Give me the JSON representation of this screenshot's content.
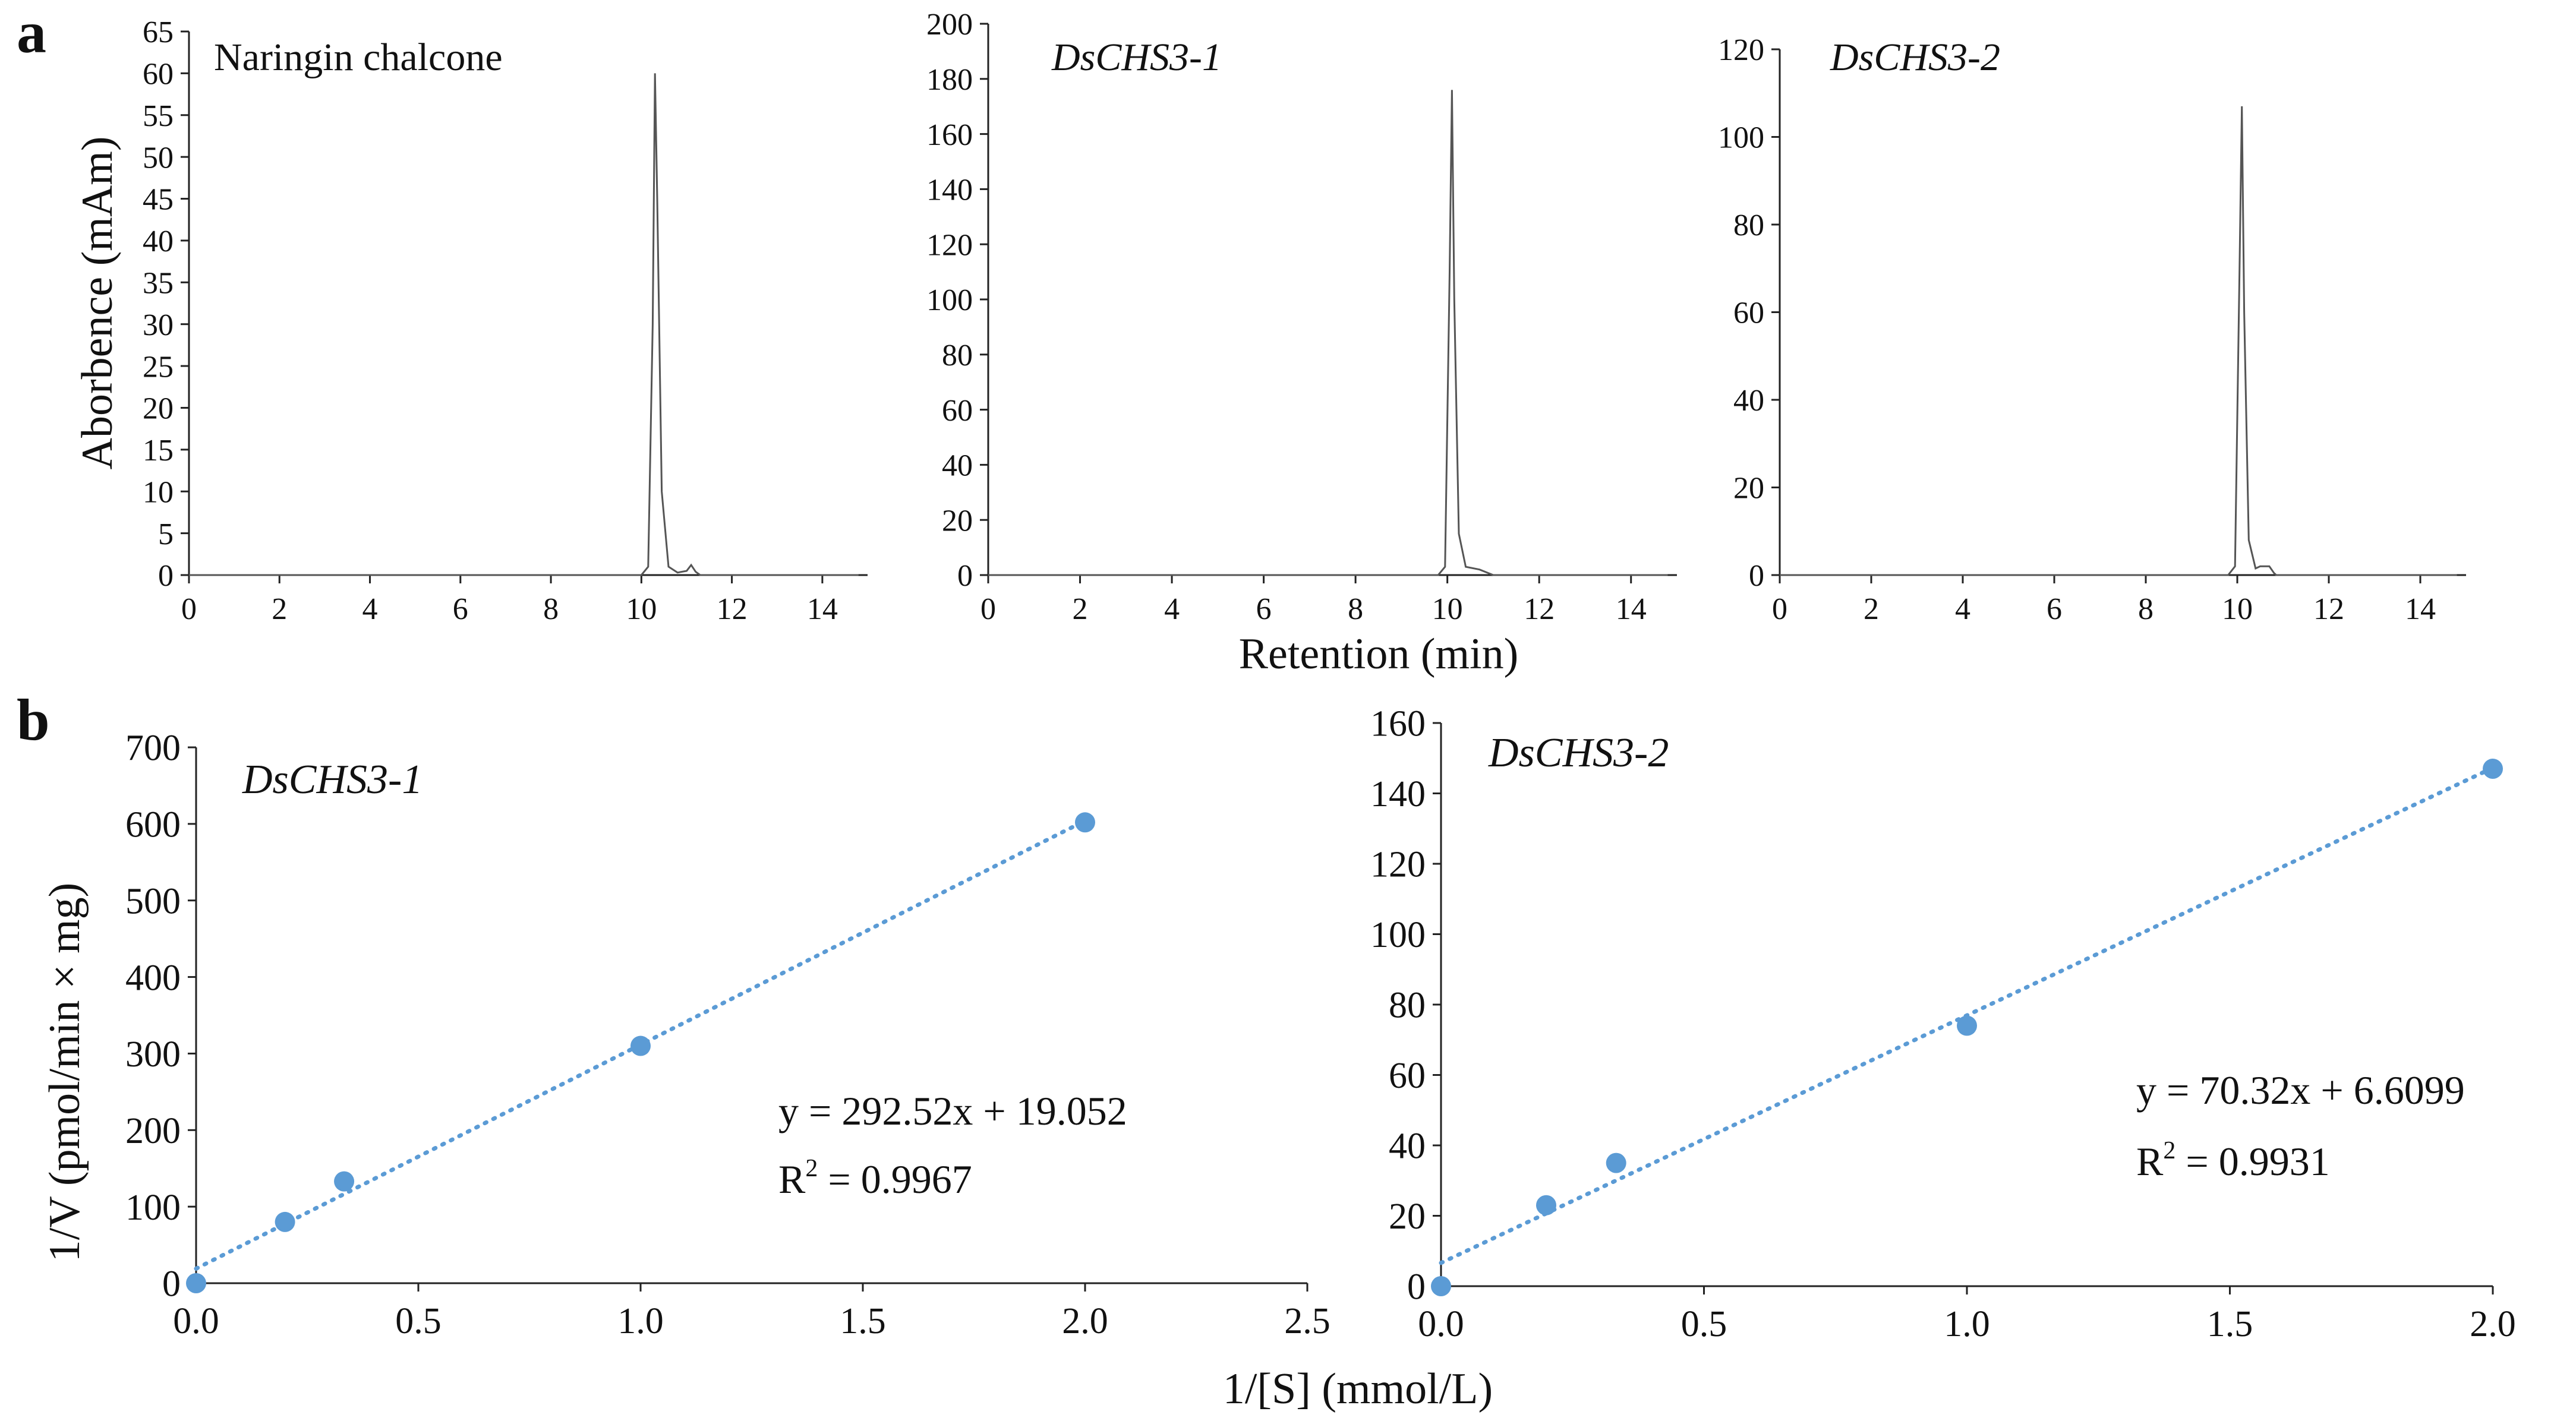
{
  "panel_labels": {
    "a": "a",
    "b": "b"
  },
  "shared_labels": {
    "a_ylabel": "Aborbence (mAm)",
    "a_xlabel": "Retention (min)",
    "b_ylabel": "1/V (pmol/min × mg)",
    "b_xlabel": "1/[S] (mmol/L)"
  },
  "chart_data": [
    {
      "type": "line",
      "panel": "a",
      "title": "Naringin chalcone",
      "title_italic": false,
      "xlabel": "Retention (min)",
      "ylabel": "Aborbence (mAm)",
      "xlim": [
        0,
        15
      ],
      "ylim": [
        0,
        65
      ],
      "xticks": [
        0,
        2,
        4,
        6,
        8,
        10,
        12,
        14
      ],
      "yticks": [
        0,
        5,
        10,
        15,
        20,
        25,
        30,
        35,
        40,
        45,
        50,
        55,
        60,
        65
      ],
      "series": [
        {
          "name": "Naringin chalcone",
          "x": [
            0,
            10.0,
            10.15,
            10.25,
            10.3,
            10.35,
            10.45,
            10.6,
            10.8,
            11.0,
            11.1,
            11.2,
            11.3,
            14.8
          ],
          "y": [
            0,
            0,
            1,
            30,
            60,
            45,
            10,
            1,
            0.3,
            0.5,
            1.2,
            0.4,
            0,
            0
          ]
        }
      ]
    },
    {
      "type": "line",
      "panel": "a",
      "title": "DsCHS3-1",
      "title_italic": true,
      "xlabel": "Retention (min)",
      "ylabel": "",
      "xlim": [
        0,
        15
      ],
      "ylim": [
        0,
        200
      ],
      "xticks": [
        0,
        2,
        4,
        6,
        8,
        10,
        12,
        14
      ],
      "yticks": [
        0,
        20,
        40,
        60,
        80,
        100,
        120,
        140,
        160,
        180,
        200
      ],
      "series": [
        {
          "name": "DsCHS3-1",
          "x": [
            0,
            9.8,
            9.95,
            10.05,
            10.1,
            10.15,
            10.25,
            10.4,
            10.7,
            11.0,
            14.8
          ],
          "y": [
            0,
            0,
            3,
            110,
            176,
            100,
            15,
            3,
            2,
            0,
            0
          ]
        }
      ]
    },
    {
      "type": "line",
      "panel": "a",
      "title": "DsCHS3-2",
      "title_italic": true,
      "xlabel": "Retention (min)",
      "ylabel": "",
      "xlim": [
        0,
        15
      ],
      "ylim": [
        0,
        120
      ],
      "xticks": [
        0,
        2,
        4,
        6,
        8,
        10,
        12,
        14
      ],
      "yticks": [
        0,
        20,
        40,
        60,
        80,
        100,
        120
      ],
      "series": [
        {
          "name": "DsCHS3-2",
          "x": [
            0,
            9.8,
            9.95,
            10.05,
            10.1,
            10.15,
            10.25,
            10.4,
            10.5,
            10.7,
            10.8,
            10.85,
            14.8
          ],
          "y": [
            0,
            0,
            2,
            70,
            107,
            60,
            8,
            1.5,
            2,
            2,
            0.5,
            0,
            0
          ]
        }
      ]
    },
    {
      "type": "scatter",
      "panel": "b",
      "title": "DsCHS3-1",
      "title_italic": true,
      "xlabel": "1/[S] (mmol/L)",
      "ylabel": "1/V (pmol/min × mg)",
      "xlim": [
        0,
        2.5
      ],
      "ylim": [
        0,
        700
      ],
      "xticks": [
        0.0,
        0.5,
        1.0,
        1.5,
        2.0,
        2.5
      ],
      "xtick_labels": [
        "0.0",
        "0.5",
        "1.0",
        "1.5",
        "2.0",
        "2.5"
      ],
      "yticks": [
        0,
        100,
        200,
        300,
        400,
        500,
        600,
        700
      ],
      "series": [
        {
          "name": "DsCHS3-1",
          "x": [
            0,
            0.2,
            0.333,
            1.0,
            2.0
          ],
          "y": [
            0,
            80,
            133,
            310,
            602
          ]
        }
      ],
      "trendline": {
        "slope": 292.52,
        "intercept": 19.052,
        "x_range": [
          0,
          2.0
        ]
      },
      "equation": "y = 292.52x + 19.052",
      "r2_label": "R",
      "r2_sup": "2",
      "r2_value": " = 0.9967"
    },
    {
      "type": "scatter",
      "panel": "b",
      "title": "DsCHS3-2",
      "title_italic": true,
      "xlabel": "1/[S] (mmol/L)",
      "ylabel": "",
      "xlim": [
        0,
        2.0
      ],
      "ylim": [
        0,
        160
      ],
      "xticks": [
        0.0,
        0.5,
        1.0,
        1.5,
        2.0
      ],
      "xtick_labels": [
        "0.0",
        "0.5",
        "1.0",
        "1.5",
        "2.0"
      ],
      "yticks": [
        0,
        20,
        40,
        60,
        80,
        100,
        120,
        140,
        160
      ],
      "series": [
        {
          "name": "DsCHS3-2",
          "x": [
            0,
            0.2,
            0.333,
            1.0,
            2.0
          ],
          "y": [
            0,
            23,
            35,
            74,
            147
          ]
        }
      ],
      "trendline": {
        "slope": 70.32,
        "intercept": 6.6099,
        "x_range": [
          0,
          2.0
        ]
      },
      "equation": "y = 70.32x + 6.6099",
      "r2_label": "R",
      "r2_sup": "2",
      "r2_value": " = 0.9931"
    }
  ]
}
